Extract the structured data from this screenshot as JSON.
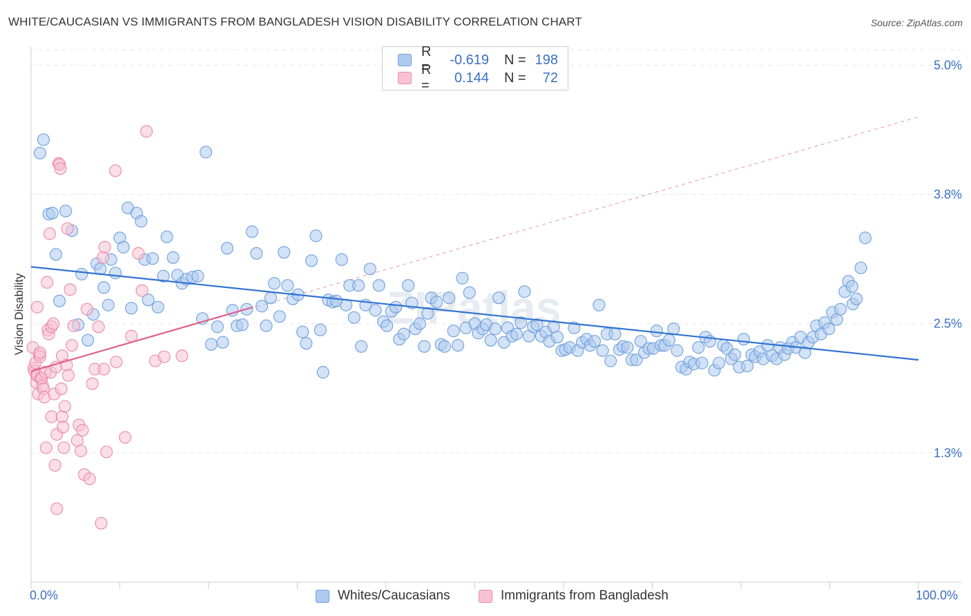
{
  "title": "WHITE/CAUCASIAN VS IMMIGRANTS FROM BANGLADESH VISION DISABILITY CORRELATION CHART",
  "source": "Source: ZipAtlas.com",
  "watermark": "ZIPatlas",
  "legend_top": {
    "rows": [
      {
        "r_label": "R =",
        "r_value": "-0.619",
        "n_label": "N =",
        "n_value": "198",
        "color": "#aecbef",
        "border": "#6d9fdc"
      },
      {
        "r_label": "R =",
        "r_value": "0.144",
        "n_label": "N =",
        "n_value": "72",
        "color": "#f8c2d2",
        "border": "#e98aa9"
      }
    ]
  },
  "legend_bottom": [
    {
      "label": "Whites/Caucasians",
      "color": "#aecbef",
      "border": "#6d9fdc"
    },
    {
      "label": "Immigrants from Bangladesh",
      "color": "#f8c2d2",
      "border": "#e98aa9"
    }
  ],
  "chart_data": {
    "type": "scatter",
    "title": "WHITE/CAUCASIAN VS IMMIGRANTS FROM BANGLADESH VISION DISABILITY CORRELATION CHART",
    "xlabel": "",
    "ylabel": "Vision Disability",
    "xlim": [
      0,
      100
    ],
    "ylim": [
      0,
      5.15
    ],
    "x_tick_labels": [
      "0.0%",
      "100.0%"
    ],
    "y_ticks": [
      1.25,
      2.5,
      3.75,
      5.0
    ],
    "y_tick_labels": [
      "1.3%",
      "2.5%",
      "3.8%",
      "5.0%"
    ],
    "grid": true,
    "legend_position": "top-center",
    "series": [
      {
        "name": "Whites/Caucasians",
        "color": "#aecbef",
        "stroke": "#6d9fdc",
        "trend": {
          "x": [
            0,
            100
          ],
          "y": [
            3.05,
            2.15
          ],
          "color": "#2f73d1",
          "dashed": false
        },
        "points": [
          [
            1,
            4.15
          ],
          [
            1.4,
            4.28
          ],
          [
            2,
            3.56
          ],
          [
            2.4,
            3.57
          ],
          [
            2.8,
            3.17
          ],
          [
            3.2,
            2.72
          ],
          [
            3.9,
            3.59
          ],
          [
            4.6,
            3.4
          ],
          [
            5.3,
            2.49
          ],
          [
            5.7,
            2.98
          ],
          [
            6.4,
            2.34
          ],
          [
            7,
            2.59
          ],
          [
            7.4,
            3.08
          ],
          [
            7.8,
            3.03
          ],
          [
            8.2,
            2.85
          ],
          [
            8.7,
            2.68
          ],
          [
            9,
            3.12
          ],
          [
            9.5,
            2.99
          ],
          [
            10,
            3.33
          ],
          [
            10.4,
            3.24
          ],
          [
            10.9,
            3.62
          ],
          [
            11.3,
            2.65
          ],
          [
            11.9,
            3.57
          ],
          [
            12.4,
            3.49
          ],
          [
            12.8,
            3.12
          ],
          [
            13.2,
            2.73
          ],
          [
            13.7,
            3.13
          ],
          [
            14.3,
            2.66
          ],
          [
            14.9,
            2.96
          ],
          [
            15.3,
            3.34
          ],
          [
            16,
            3.14
          ],
          [
            16.5,
            2.97
          ],
          [
            17,
            2.89
          ],
          [
            17.5,
            2.93
          ],
          [
            18.2,
            2.95
          ],
          [
            18.8,
            2.96
          ],
          [
            19.3,
            2.55
          ],
          [
            19.7,
            4.16
          ],
          [
            20.3,
            2.3
          ],
          [
            21,
            2.47
          ],
          [
            21.6,
            2.32
          ],
          [
            22.1,
            3.23
          ],
          [
            22.7,
            2.63
          ],
          [
            23.2,
            2.48
          ],
          [
            23.8,
            2.49
          ],
          [
            24.3,
            2.64
          ],
          [
            24.9,
            3.39
          ],
          [
            25.4,
            3.18
          ],
          [
            26,
            2.67
          ],
          [
            26.5,
            2.48
          ],
          [
            27,
            2.75
          ],
          [
            27.4,
            2.89
          ],
          [
            28,
            2.57
          ],
          [
            28.5,
            3.19
          ],
          [
            28.9,
            2.87
          ],
          [
            29.5,
            2.74
          ],
          [
            30.1,
            2.78
          ],
          [
            30.6,
            2.42
          ],
          [
            31,
            2.31
          ],
          [
            31.6,
            3.11
          ],
          [
            32.1,
            3.35
          ],
          [
            32.6,
            2.44
          ],
          [
            32.9,
            2.03
          ],
          [
            33.5,
            2.73
          ],
          [
            34,
            2.71
          ],
          [
            34.4,
            2.72
          ],
          [
            35,
            3.12
          ],
          [
            35.5,
            2.68
          ],
          [
            35.9,
            2.87
          ],
          [
            36.4,
            2.56
          ],
          [
            36.9,
            2.87
          ],
          [
            37.2,
            2.28
          ],
          [
            37.7,
            2.68
          ],
          [
            38.2,
            3.03
          ],
          [
            38.8,
            2.63
          ],
          [
            39.2,
            2.87
          ],
          [
            39.7,
            2.52
          ],
          [
            40.1,
            2.48
          ],
          [
            40.6,
            2.62
          ],
          [
            41.1,
            2.66
          ],
          [
            41.5,
            2.35
          ],
          [
            42,
            2.4
          ],
          [
            42.5,
            2.87
          ],
          [
            42.9,
            2.7
          ],
          [
            43.3,
            2.45
          ],
          [
            43.8,
            2.5
          ],
          [
            44.3,
            2.28
          ],
          [
            44.7,
            2.6
          ],
          [
            45.1,
            2.75
          ],
          [
            45.7,
            2.71
          ],
          [
            46.2,
            2.3
          ],
          [
            46.6,
            2.28
          ],
          [
            47.1,
            2.75
          ],
          [
            47.6,
            2.43
          ],
          [
            48.1,
            2.29
          ],
          [
            48.6,
            2.94
          ],
          [
            49,
            2.46
          ],
          [
            49.4,
            2.8
          ],
          [
            50,
            2.5
          ],
          [
            50.4,
            2.41
          ],
          [
            50.9,
            2.45
          ],
          [
            51.3,
            2.49
          ],
          [
            51.8,
            2.34
          ],
          [
            52.3,
            2.45
          ],
          [
            52.7,
            2.75
          ],
          [
            53.3,
            2.32
          ],
          [
            53.7,
            2.46
          ],
          [
            54.2,
            2.38
          ],
          [
            54.7,
            2.4
          ],
          [
            55.2,
            2.51
          ],
          [
            55.6,
            2.81
          ],
          [
            56.1,
            2.38
          ],
          [
            56.6,
            2.47
          ],
          [
            57,
            2.49
          ],
          [
            57.5,
            2.38
          ],
          [
            58,
            2.42
          ],
          [
            58.4,
            2.33
          ],
          [
            58.9,
            2.47
          ],
          [
            59.3,
            2.37
          ],
          [
            59.8,
            2.24
          ],
          [
            60.2,
            2.25
          ],
          [
            60.7,
            2.27
          ],
          [
            61.2,
            2.46
          ],
          [
            61.6,
            2.24
          ],
          [
            62.1,
            2.32
          ],
          [
            62.6,
            2.35
          ],
          [
            63,
            2.29
          ],
          [
            63.5,
            2.33
          ],
          [
            64,
            2.68
          ],
          [
            64.4,
            2.24
          ],
          [
            64.9,
            2.4
          ],
          [
            65.3,
            2.14
          ],
          [
            65.8,
            2.4
          ],
          [
            66.3,
            2.25
          ],
          [
            66.7,
            2.28
          ],
          [
            67.2,
            2.27
          ],
          [
            67.7,
            2.15
          ],
          [
            68.2,
            2.15
          ],
          [
            68.7,
            2.33
          ],
          [
            69.1,
            2.22
          ],
          [
            69.6,
            2.26
          ],
          [
            70.1,
            2.26
          ],
          [
            70.5,
            2.43
          ],
          [
            71,
            2.29
          ],
          [
            71.4,
            2.29
          ],
          [
            71.9,
            2.34
          ],
          [
            72.4,
            2.45
          ],
          [
            72.8,
            2.24
          ],
          [
            73.3,
            2.08
          ],
          [
            73.8,
            2.06
          ],
          [
            74.2,
            2.13
          ],
          [
            74.7,
            2.11
          ],
          [
            75.2,
            2.27
          ],
          [
            75.6,
            2.12
          ],
          [
            76,
            2.37
          ],
          [
            76.5,
            2.33
          ],
          [
            77,
            2.05
          ],
          [
            77.5,
            2.12
          ],
          [
            78,
            2.29
          ],
          [
            78.4,
            2.26
          ],
          [
            78.9,
            2.16
          ],
          [
            79.3,
            2.2
          ],
          [
            79.8,
            2.08
          ],
          [
            80.3,
            2.35
          ],
          [
            80.7,
            2.09
          ],
          [
            81.2,
            2.2
          ],
          [
            81.6,
            2.18
          ],
          [
            82.1,
            2.23
          ],
          [
            82.5,
            2.16
          ],
          [
            83,
            2.29
          ],
          [
            83.5,
            2.19
          ],
          [
            84,
            2.16
          ],
          [
            84.4,
            2.27
          ],
          [
            84.9,
            2.2
          ],
          [
            85.3,
            2.26
          ],
          [
            85.8,
            2.32
          ],
          [
            86.2,
            2.27
          ],
          [
            86.7,
            2.37
          ],
          [
            87.2,
            2.22
          ],
          [
            87.6,
            2.32
          ],
          [
            88.1,
            2.37
          ],
          [
            88.5,
            2.48
          ],
          [
            89,
            2.4
          ],
          [
            89.4,
            2.51
          ],
          [
            89.9,
            2.45
          ],
          [
            90.3,
            2.61
          ],
          [
            90.8,
            2.54
          ],
          [
            91.2,
            2.64
          ],
          [
            91.7,
            2.81
          ],
          [
            92.1,
            2.91
          ],
          [
            92.6,
            2.69
          ],
          [
            93,
            2.74
          ],
          [
            93.5,
            3.04
          ],
          [
            94,
            3.33
          ],
          [
            92.5,
            2.86
          ]
        ]
      },
      {
        "name": "Immigrants from Bangladesh",
        "color": "#f8c2d2",
        "stroke": "#e98aa9",
        "trend": {
          "x": [
            0,
            25
          ],
          "y": [
            2.04,
            2.66
          ],
          "color": "#e0608c",
          "dashed": false,
          "extended": {
            "x": [
              0,
              100
            ],
            "y": [
              2.04,
              4.5
            ],
            "dashed": true
          }
        },
        "points": [
          [
            0.2,
            2.27
          ],
          [
            0.3,
            2.07
          ],
          [
            0.4,
            2.04
          ],
          [
            0.5,
            2.12
          ],
          [
            0.6,
            2.0
          ],
          [
            0.6,
            1.93
          ],
          [
            0.7,
            2.0
          ],
          [
            0.7,
            2.66
          ],
          [
            0.8,
            1.82
          ],
          [
            0.9,
            2.2
          ],
          [
            1.0,
            2.18
          ],
          [
            1.0,
            2.22
          ],
          [
            1.1,
            1.97
          ],
          [
            1.2,
            1.97
          ],
          [
            1.3,
            1.9
          ],
          [
            1.4,
            1.87
          ],
          [
            1.5,
            1.79
          ],
          [
            1.6,
            2.03
          ],
          [
            1.7,
            1.3
          ],
          [
            1.8,
            2.9
          ],
          [
            1.9,
            2.44
          ],
          [
            2.0,
            2.4
          ],
          [
            2.1,
            3.37
          ],
          [
            2.2,
            2.03
          ],
          [
            2.3,
            2.47
          ],
          [
            2.3,
            1.6
          ],
          [
            2.5,
            2.5
          ],
          [
            2.6,
            1.82
          ],
          [
            2.7,
            1.13
          ],
          [
            2.8,
            2.08
          ],
          [
            2.9,
            1.43
          ],
          [
            2.9,
            0.71
          ],
          [
            3.1,
            4.05
          ],
          [
            3.2,
            4.04
          ],
          [
            3.3,
            4.0
          ],
          [
            3.4,
            1.87
          ],
          [
            3.5,
            1.6
          ],
          [
            3.5,
            2.19
          ],
          [
            3.6,
            1.5
          ],
          [
            3.7,
            1.3
          ],
          [
            3.8,
            1.7
          ],
          [
            4.0,
            2.1
          ],
          [
            4.1,
            3.42
          ],
          [
            4.2,
            2.0
          ],
          [
            4.4,
            2.83
          ],
          [
            4.6,
            2.29
          ],
          [
            4.8,
            2.48
          ],
          [
            5.2,
            1.37
          ],
          [
            5.4,
            1.52
          ],
          [
            5.6,
            1.27
          ],
          [
            5.8,
            1.47
          ],
          [
            6.0,
            1.04
          ],
          [
            6.3,
            2.64
          ],
          [
            6.6,
            1.0
          ],
          [
            6.9,
            1.92
          ],
          [
            7.2,
            2.06
          ],
          [
            7.6,
            2.47
          ],
          [
            7.9,
            0.57
          ],
          [
            8.1,
            3.14
          ],
          [
            8.2,
            2.06
          ],
          [
            8.3,
            3.24
          ],
          [
            8.5,
            1.26
          ],
          [
            9.5,
            3.98
          ],
          [
            9.6,
            2.13
          ],
          [
            10.6,
            1.4
          ],
          [
            11.3,
            2.38
          ],
          [
            12.1,
            3.18
          ],
          [
            12.5,
            2.82
          ],
          [
            13.0,
            4.36
          ],
          [
            14.0,
            2.14
          ],
          [
            15.0,
            2.18
          ],
          [
            17.0,
            2.19
          ]
        ]
      }
    ]
  }
}
